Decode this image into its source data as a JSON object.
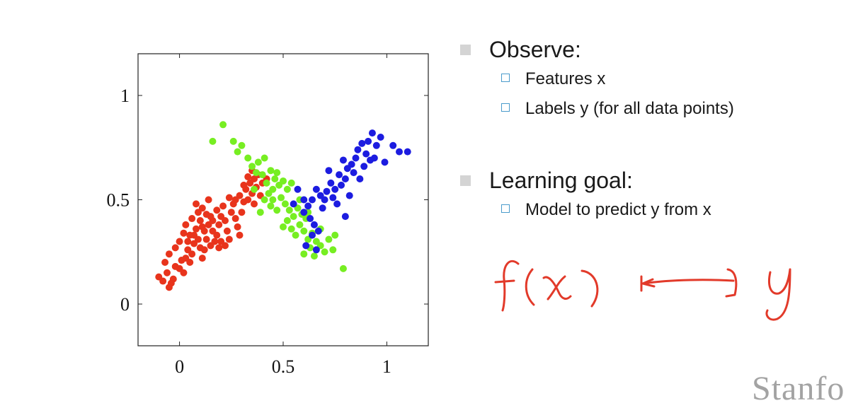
{
  "chart_data": {
    "type": "scatter",
    "title": "",
    "xlabel": "",
    "ylabel": "",
    "xlim": [
      -0.2,
      1.2
    ],
    "ylim": [
      -0.2,
      1.2
    ],
    "xticks": [
      "0",
      "0.5",
      "1"
    ],
    "yticks": [
      "0",
      "0.5",
      "1"
    ],
    "xtick_values": [
      0,
      0.5,
      1
    ],
    "ytick_values": [
      0,
      0.5,
      1
    ],
    "grid": false,
    "series": [
      {
        "color": "#e8341c",
        "points": [
          [
            -0.1,
            0.13
          ],
          [
            -0.08,
            0.11
          ],
          [
            -0.05,
            0.08
          ],
          [
            -0.04,
            0.1
          ],
          [
            -0.06,
            0.15
          ],
          [
            -0.03,
            0.12
          ],
          [
            -0.02,
            0.18
          ],
          [
            -0.07,
            0.2
          ],
          [
            -0.05,
            0.24
          ],
          [
            0.0,
            0.17
          ],
          [
            0.02,
            0.15
          ],
          [
            0.01,
            0.21
          ],
          [
            0.03,
            0.22
          ],
          [
            -0.02,
            0.27
          ],
          [
            0.0,
            0.3
          ],
          [
            0.02,
            0.34
          ],
          [
            0.04,
            0.26
          ],
          [
            0.05,
            0.2
          ],
          [
            0.06,
            0.24
          ],
          [
            0.07,
            0.29
          ],
          [
            0.05,
            0.33
          ],
          [
            0.03,
            0.38
          ],
          [
            0.08,
            0.36
          ],
          [
            0.06,
            0.41
          ],
          [
            0.09,
            0.31
          ],
          [
            0.1,
            0.27
          ],
          [
            0.11,
            0.22
          ],
          [
            0.12,
            0.26
          ],
          [
            0.13,
            0.31
          ],
          [
            0.12,
            0.35
          ],
          [
            0.14,
            0.38
          ],
          [
            0.1,
            0.4
          ],
          [
            0.09,
            0.44
          ],
          [
            0.11,
            0.46
          ],
          [
            0.13,
            0.43
          ],
          [
            0.15,
            0.42
          ],
          [
            0.16,
            0.35
          ],
          [
            0.17,
            0.3
          ],
          [
            0.15,
            0.28
          ],
          [
            0.18,
            0.33
          ],
          [
            0.19,
            0.38
          ],
          [
            0.2,
            0.42
          ],
          [
            0.18,
            0.45
          ],
          [
            0.21,
            0.47
          ],
          [
            0.22,
            0.4
          ],
          [
            0.23,
            0.35
          ],
          [
            0.24,
            0.31
          ],
          [
            0.22,
            0.28
          ],
          [
            0.25,
            0.44
          ],
          [
            0.26,
            0.48
          ],
          [
            0.27,
            0.41
          ],
          [
            0.28,
            0.37
          ],
          [
            0.29,
            0.33
          ],
          [
            0.3,
            0.44
          ],
          [
            0.31,
            0.49
          ],
          [
            0.29,
            0.52
          ],
          [
            0.27,
            0.5
          ],
          [
            0.24,
            0.51
          ],
          [
            0.32,
            0.55
          ],
          [
            0.33,
            0.5
          ],
          [
            0.34,
            0.58
          ],
          [
            0.35,
            0.53
          ],
          [
            0.36,
            0.6
          ],
          [
            0.37,
            0.56
          ],
          [
            0.38,
            0.62
          ],
          [
            0.35,
            0.64
          ],
          [
            0.33,
            0.61
          ],
          [
            0.31,
            0.57
          ],
          [
            0.4,
            0.58
          ],
          [
            0.42,
            0.6
          ],
          [
            0.39,
            0.52
          ],
          [
            0.36,
            0.48
          ],
          [
            0.2,
            0.3
          ],
          [
            0.16,
            0.4
          ],
          [
            0.08,
            0.48
          ],
          [
            0.14,
            0.5
          ],
          [
            0.19,
            0.27
          ],
          [
            0.11,
            0.37
          ],
          [
            0.07,
            0.33
          ],
          [
            0.04,
            0.3
          ]
        ]
      },
      {
        "color": "#77ee22",
        "points": [
          [
            0.21,
            0.86
          ],
          [
            0.16,
            0.78
          ],
          [
            0.26,
            0.78
          ],
          [
            0.3,
            0.76
          ],
          [
            0.28,
            0.73
          ],
          [
            0.33,
            0.7
          ],
          [
            0.35,
            0.66
          ],
          [
            0.38,
            0.68
          ],
          [
            0.37,
            0.63
          ],
          [
            0.41,
            0.7
          ],
          [
            0.44,
            0.64
          ],
          [
            0.46,
            0.6
          ],
          [
            0.48,
            0.57
          ],
          [
            0.5,
            0.59
          ],
          [
            0.52,
            0.55
          ],
          [
            0.54,
            0.58
          ],
          [
            0.45,
            0.55
          ],
          [
            0.43,
            0.53
          ],
          [
            0.41,
            0.5
          ],
          [
            0.44,
            0.47
          ],
          [
            0.47,
            0.45
          ],
          [
            0.49,
            0.51
          ],
          [
            0.51,
            0.48
          ],
          [
            0.53,
            0.45
          ],
          [
            0.55,
            0.42
          ],
          [
            0.57,
            0.46
          ],
          [
            0.59,
            0.43
          ],
          [
            0.52,
            0.4
          ],
          [
            0.5,
            0.37
          ],
          [
            0.54,
            0.36
          ],
          [
            0.56,
            0.33
          ],
          [
            0.58,
            0.38
          ],
          [
            0.6,
            0.35
          ],
          [
            0.62,
            0.31
          ],
          [
            0.64,
            0.34
          ],
          [
            0.66,
            0.3
          ],
          [
            0.68,
            0.28
          ],
          [
            0.63,
            0.27
          ],
          [
            0.6,
            0.24
          ],
          [
            0.65,
            0.23
          ],
          [
            0.7,
            0.25
          ],
          [
            0.72,
            0.31
          ],
          [
            0.75,
            0.33
          ],
          [
            0.74,
            0.26
          ],
          [
            0.79,
            0.17
          ],
          [
            0.68,
            0.36
          ],
          [
            0.61,
            0.41
          ],
          [
            0.39,
            0.44
          ],
          [
            0.42,
            0.58
          ],
          [
            0.47,
            0.63
          ],
          [
            0.36,
            0.55
          ],
          [
            0.4,
            0.62
          ],
          [
            0.45,
            0.5
          ],
          [
            0.58,
            0.5
          ],
          [
            0.62,
            0.44
          ]
        ]
      },
      {
        "color": "#1c1ce0",
        "points": [
          [
            0.97,
            0.8
          ],
          [
            0.93,
            0.82
          ],
          [
            0.95,
            0.76
          ],
          [
            1.03,
            0.76
          ],
          [
            1.06,
            0.73
          ],
          [
            1.1,
            0.73
          ],
          [
            0.91,
            0.78
          ],
          [
            0.88,
            0.77
          ],
          [
            0.86,
            0.74
          ],
          [
            0.9,
            0.72
          ],
          [
            0.92,
            0.69
          ],
          [
            0.89,
            0.66
          ],
          [
            0.85,
            0.7
          ],
          [
            0.83,
            0.67
          ],
          [
            0.84,
            0.63
          ],
          [
            0.81,
            0.65
          ],
          [
            0.8,
            0.6
          ],
          [
            0.77,
            0.62
          ],
          [
            0.78,
            0.57
          ],
          [
            0.75,
            0.55
          ],
          [
            0.73,
            0.58
          ],
          [
            0.71,
            0.54
          ],
          [
            0.74,
            0.51
          ],
          [
            0.76,
            0.48
          ],
          [
            0.7,
            0.5
          ],
          [
            0.68,
            0.52
          ],
          [
            0.66,
            0.55
          ],
          [
            0.64,
            0.5
          ],
          [
            0.62,
            0.47
          ],
          [
            0.6,
            0.44
          ],
          [
            0.63,
            0.41
          ],
          [
            0.65,
            0.38
          ],
          [
            0.67,
            0.35
          ],
          [
            0.64,
            0.33
          ],
          [
            0.61,
            0.28
          ],
          [
            0.66,
            0.26
          ],
          [
            0.55,
            0.48
          ],
          [
            0.57,
            0.55
          ],
          [
            0.8,
            0.42
          ],
          [
            0.82,
            0.52
          ],
          [
            0.87,
            0.6
          ],
          [
            0.94,
            0.7
          ],
          [
            0.99,
            0.68
          ],
          [
            0.79,
            0.69
          ],
          [
            0.72,
            0.64
          ],
          [
            0.69,
            0.46
          ],
          [
            0.6,
            0.5
          ]
        ]
      }
    ]
  },
  "bullets": {
    "observe": {
      "heading": "Observe:",
      "items": [
        "Features x",
        "Labels y (for all data points)"
      ]
    },
    "learning_goal": {
      "heading": "Learning goal:",
      "items": [
        "Model to predict y from x"
      ]
    }
  },
  "annotation": {
    "description": "handwritten f(x) → y",
    "ink_color": "#e23a2a"
  },
  "brand": {
    "text": "Stanfo"
  }
}
